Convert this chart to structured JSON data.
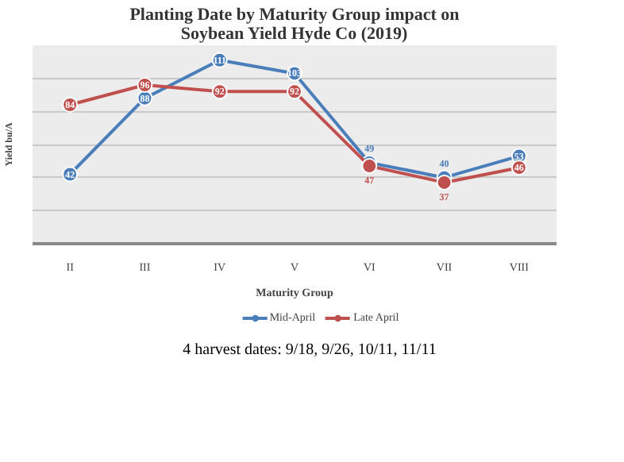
{
  "chart_data": {
    "type": "line",
    "title": "Planting Date by Maturity Group impact on\nSoybean Yield Hyde Co (2019)",
    "xlabel": "Maturity Group",
    "ylabel": "Yield bu/A",
    "categories": [
      "II",
      "III",
      "IV",
      "V",
      "VI",
      "VII",
      "VIII"
    ],
    "series": [
      {
        "name": "Mid-April",
        "color": "#4a7ebb",
        "values": [
          42,
          88,
          111,
          103,
          49,
          40,
          53
        ]
      },
      {
        "name": "Late April",
        "color": "#c0504d",
        "values": [
          84,
          96,
          92,
          92,
          47,
          37,
          46
        ]
      }
    ],
    "ylim": [
      0,
      120
    ],
    "yticks": [
      {
        "value": 0,
        "label": null
      },
      {
        "value": 20,
        "label": null
      },
      {
        "value": 40,
        "label": null
      },
      {
        "value": 60,
        "label": null
      },
      {
        "value": 80,
        "label": null
      },
      {
        "value": 100,
        "label": null
      },
      {
        "value": 120,
        "label": null
      }
    ],
    "tick_labels": "x",
    "grid": "y",
    "legend": "bottom",
    "marker": "circle",
    "line_style": "solid",
    "data_labels": true,
    "annotations": [
      "4 harvest dates: 9/18, 9/26, 10/11, 11/11"
    ]
  }
}
